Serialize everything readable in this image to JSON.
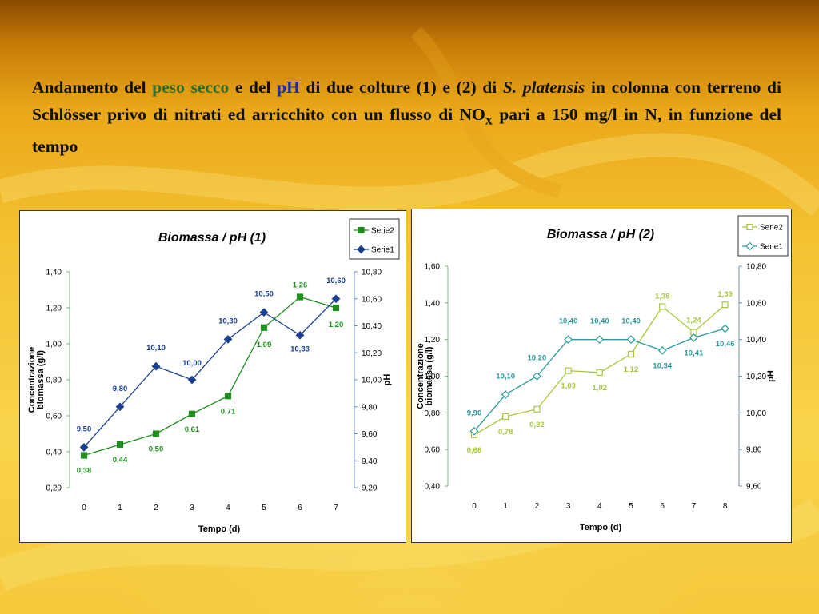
{
  "title": {
    "p1": "Andamento del ",
    "peso_secco": "peso secco",
    "p2": " e del ",
    "ph": "pH",
    "p3": " di due colture (1) e (2) di ",
    "species": "S. platensis",
    "p4": " in colonna con terreno di Schlösser privo di nitrati ed arricchito con un flusso di NO",
    "sub": "x",
    "p5": " pari a 150 mg/l in N, in funzione del tempo"
  },
  "colors": {
    "c1_biomass": "#1f8f1f",
    "c1_ph": "#1b3f8f",
    "c2_biomass": "#a5c93a",
    "c2_ph": "#2b9a9c"
  },
  "chart_data": [
    {
      "type": "line",
      "title": "Biomassa / pH (1)",
      "xlabel": "Tempo (d)",
      "ylabel": [
        "Concentrazione",
        "biomassa (g/l)"
      ],
      "y2label": "pH",
      "x": [
        0,
        1,
        2,
        3,
        4,
        5,
        6,
        7
      ],
      "ylim": [
        0.2,
        1.4
      ],
      "yticks": [
        "0,20",
        "0,40",
        "0,60",
        "0,80",
        "1,00",
        "1,20",
        "1,40"
      ],
      "y2lim": [
        9.2,
        10.8
      ],
      "y2ticks": [
        "9,20",
        "9,40",
        "9,60",
        "9,80",
        "10,00",
        "10,20",
        "10,40",
        "10,60",
        "10,80"
      ],
      "legend_position": "top-right",
      "series": [
        {
          "name": "Serie2",
          "axis": "left",
          "marker": "square-filled",
          "values": [
            0.38,
            0.44,
            0.5,
            0.61,
            0.71,
            1.09,
            1.26,
            1.2
          ],
          "labels": [
            "0,38",
            "0,44",
            "0,50",
            "0,61",
            "0,71",
            "1,09",
            "1,26",
            "1,20"
          ]
        },
        {
          "name": "Serie1",
          "axis": "right",
          "marker": "diamond-filled",
          "values": [
            9.5,
            9.8,
            10.1,
            10.0,
            10.3,
            10.5,
            10.33,
            10.6
          ],
          "labels": [
            "9,50",
            "9,80",
            "10,10",
            "10,00",
            "10,30",
            "10,50",
            "10,33",
            "10,60"
          ]
        }
      ]
    },
    {
      "type": "line",
      "title": "Biomassa / pH (2)",
      "xlabel": "Tempo (d)",
      "ylabel": [
        "Concentrazione",
        "biomassa (g/l)"
      ],
      "y2label": "pH",
      "x": [
        0,
        1,
        2,
        3,
        4,
        5,
        6,
        7,
        8
      ],
      "ylim": [
        0.4,
        1.6
      ],
      "yticks": [
        "0,40",
        "0,60",
        "0,80",
        "1,00",
        "1,20",
        "1,40",
        "1,60"
      ],
      "y2lim": [
        9.6,
        10.8
      ],
      "y2ticks": [
        "9,60",
        "9,80",
        "10,00",
        "10,20",
        "10,40",
        "10,60",
        "10,80"
      ],
      "legend_position": "top-right",
      "series": [
        {
          "name": "Serie2",
          "axis": "left",
          "marker": "square-open",
          "values": [
            0.68,
            0.78,
            0.82,
            1.03,
            1.02,
            1.12,
            1.38,
            1.24,
            1.39
          ],
          "labels": [
            "0,68",
            "0,78",
            "0,82",
            "1,03",
            "1,02",
            "1,12",
            "1,38",
            "1,24",
            "1,39"
          ]
        },
        {
          "name": "Serie1",
          "axis": "right",
          "marker": "diamond-open",
          "values": [
            9.9,
            10.1,
            10.2,
            10.4,
            10.4,
            10.4,
            10.34,
            10.41,
            10.46
          ],
          "labels": [
            "9,90",
            "10,10",
            "10,20",
            "10,40",
            "10,40",
            "10,40",
            "10,34",
            "10,41",
            "10,46"
          ]
        }
      ]
    }
  ]
}
